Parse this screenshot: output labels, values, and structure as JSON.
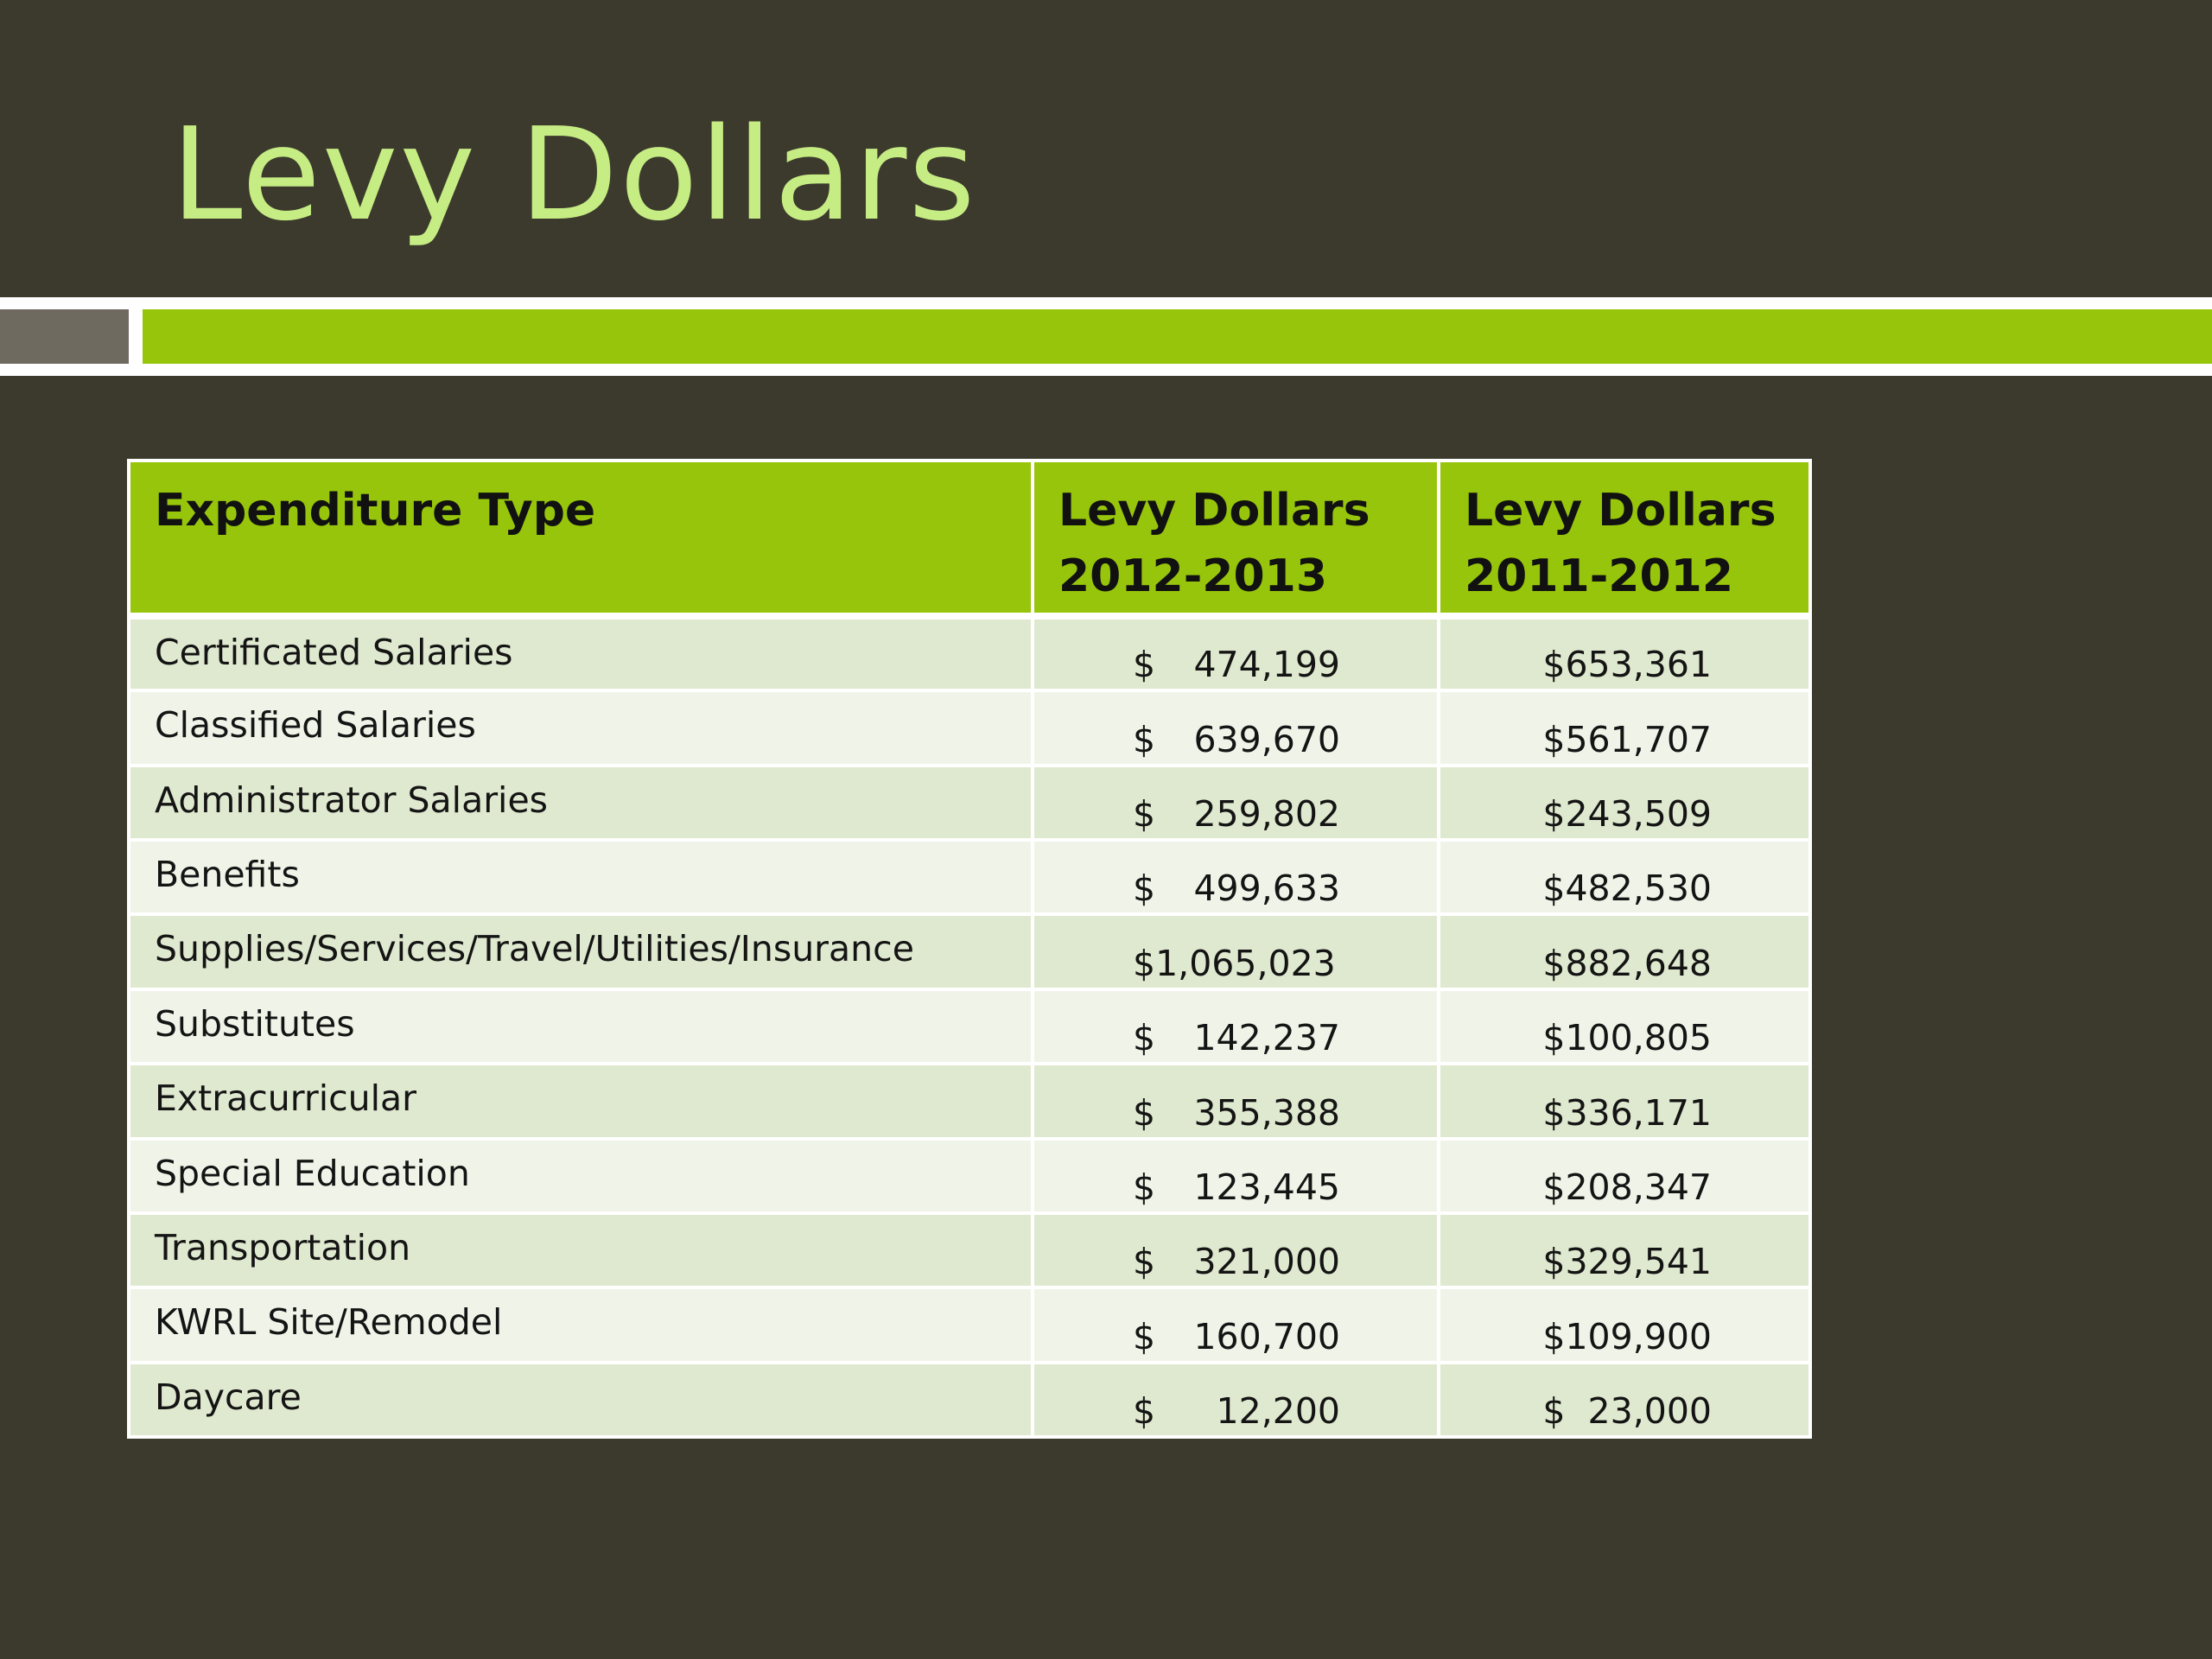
{
  "slide": {
    "title": "Levy Dollars"
  },
  "table": {
    "headers": {
      "col1": "Expenditure Type",
      "col2_line1": "Levy Dollars",
      "col2_line2": "2012-2013",
      "col3_line1": "Levy Dollars",
      "col3_line2": "2011-2012"
    },
    "rows": [
      {
        "type": "Certificated Salaries",
        "y2012_2013_symbol": "$",
        "y2012_2013_amount": "474,199",
        "y2011_2012": "$653,361"
      },
      {
        "type": "Classified Salaries",
        "y2012_2013_symbol": "$",
        "y2012_2013_amount": "639,670",
        "y2011_2012": "$561,707"
      },
      {
        "type": "Administrator Salaries",
        "y2012_2013_symbol": "$",
        "y2012_2013_amount": "259,802",
        "y2011_2012": "$243,509"
      },
      {
        "type": "Benefits",
        "y2012_2013_symbol": "$",
        "y2012_2013_amount": "499,633",
        "y2011_2012": "$482,530"
      },
      {
        "type": "Supplies/Services/Travel/Utilities/Insurance",
        "y2012_2013_symbol": "$1,065,023",
        "y2012_2013_amount": "",
        "y2011_2012": "$882,648"
      },
      {
        "type": "Substitutes",
        "y2012_2013_symbol": "$",
        "y2012_2013_amount": "142,237",
        "y2011_2012": "$100,805"
      },
      {
        "type": "Extracurricular",
        "y2012_2013_symbol": "$",
        "y2012_2013_amount": "355,388",
        "y2011_2012": "$336,171"
      },
      {
        "type": "Special Education",
        "y2012_2013_symbol": "$",
        "y2012_2013_amount": "123,445",
        "y2011_2012": "$208,347"
      },
      {
        "type": "Transportation",
        "y2012_2013_symbol": "$",
        "y2012_2013_amount": "321,000",
        "y2011_2012": "$329,541"
      },
      {
        "type": "KWRL Site/Remodel",
        "y2012_2013_symbol": "$",
        "y2012_2013_amount": "160,700",
        "y2011_2012": "$109,900"
      },
      {
        "type": "Daycare",
        "y2012_2013_symbol": "$",
        "y2012_2013_amount": "12,200",
        "y2011_2012": "$  23,000"
      }
    ]
  },
  "colors": {
    "background": "#3c3a2c",
    "title": "#c6ec84",
    "accent_green": "#97c50b",
    "accent_grey": "#6f6a60",
    "row_odd": "#dfe9cf",
    "row_even": "#f0f4e8"
  }
}
